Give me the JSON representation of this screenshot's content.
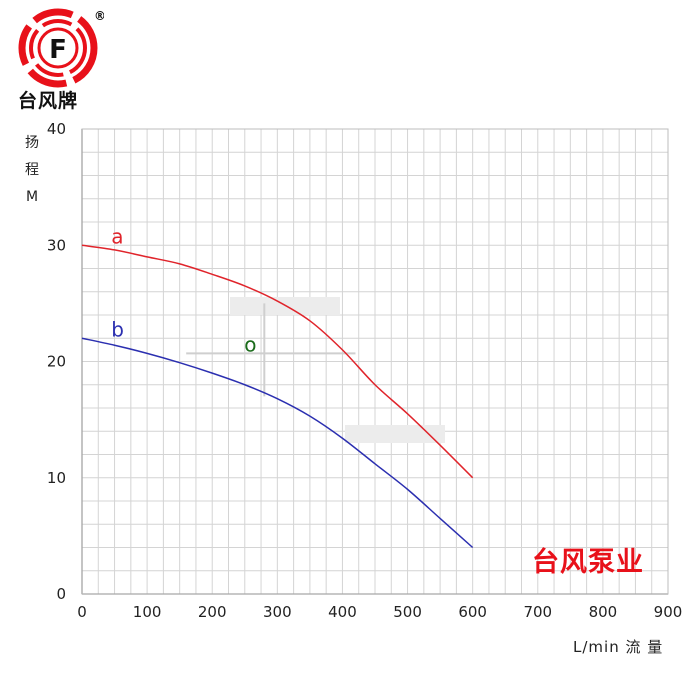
{
  "logo": {
    "letter": "F",
    "registered": "®",
    "name": "台风牌",
    "ring_color": "#e8111a"
  },
  "brand_text": "台风泵业",
  "y_axis_label_chars": [
    "扬",
    "程",
    "M"
  ],
  "x_axis_label": "L/min 流 量",
  "chart_data": {
    "type": "line",
    "xlabel": "L/min 流 量",
    "ylabel": "扬程 M",
    "xlim": [
      0,
      900
    ],
    "ylim": [
      0,
      40
    ],
    "xticks": [
      0,
      100,
      200,
      300,
      400,
      500,
      600,
      700,
      800,
      900
    ],
    "yticks": [
      0,
      10,
      20,
      30,
      40
    ],
    "grid": true,
    "series": [
      {
        "name": "a",
        "color": "#e0242b",
        "x": [
          0,
          50,
          100,
          150,
          200,
          250,
          300,
          350,
          400,
          450,
          500,
          550,
          600
        ],
        "y": [
          30.0,
          29.6,
          29.0,
          28.4,
          27.5,
          26.5,
          25.2,
          23.5,
          21.0,
          18.0,
          15.5,
          12.8,
          10.0
        ]
      },
      {
        "name": "b",
        "color": "#2b2fb0",
        "x": [
          0,
          50,
          100,
          150,
          200,
          250,
          300,
          350,
          400,
          450,
          500,
          550,
          600
        ],
        "y": [
          22.0,
          21.4,
          20.7,
          19.9,
          19.0,
          18.0,
          16.8,
          15.3,
          13.4,
          11.2,
          9.0,
          6.5,
          4.0
        ]
      }
    ],
    "annotations": [
      {
        "text": "o",
        "x": 280,
        "y": 20.7,
        "color": "#1a6b1a"
      }
    ]
  }
}
